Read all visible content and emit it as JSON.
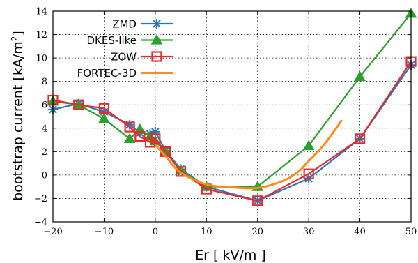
{
  "chart_data": {
    "type": "line",
    "xlabel": "Er [ kV/m ]",
    "ylabel": "bootstrap current [kA/m²]",
    "ylabel_main": "bootstrap current [kA/m",
    "ylabel_sup": "2",
    "ylabel_end": "]",
    "xlim": [
      -20,
      50
    ],
    "ylim": [
      -4,
      14
    ],
    "xticks": [
      -20,
      -10,
      0,
      10,
      20,
      30,
      40,
      50
    ],
    "xtick_labels": [
      "−20",
      "−10",
      "0",
      "10",
      "20",
      "30",
      "40",
      "50"
    ],
    "yticks": [
      -4,
      -2,
      0,
      2,
      4,
      6,
      8,
      10,
      12,
      14
    ],
    "ytick_labels": [
      "−4",
      "−2",
      "0",
      "2",
      "4",
      "6",
      "8",
      "10",
      "12",
      "14"
    ],
    "grid": true,
    "legend_position": "top-left",
    "series": [
      {
        "name": "ZMD",
        "color": "#2a77b8",
        "marker": "asterisk",
        "points": [
          [
            -20,
            5.6
          ],
          [
            -15,
            6.1
          ],
          [
            -10,
            5.4
          ],
          [
            -5,
            4.3
          ],
          [
            -3,
            3.6
          ],
          [
            -1,
            3.5
          ],
          [
            0,
            3.7
          ],
          [
            2,
            2.1
          ],
          [
            5,
            0.5
          ],
          [
            10,
            -1.0
          ],
          [
            20,
            -2.2
          ],
          [
            30,
            -0.3
          ],
          [
            40,
            3.1
          ],
          [
            50,
            9.4
          ]
        ]
      },
      {
        "name": "DKES-like",
        "color": "#2ca02c",
        "marker": "triangle",
        "points": [
          [
            -20,
            6.3
          ],
          [
            -15,
            6.0
          ],
          [
            -10,
            4.8
          ],
          [
            -5,
            3.1
          ],
          [
            -3,
            3.9
          ],
          [
            -1,
            3.3
          ],
          [
            0,
            2.9
          ],
          [
            2,
            2.0
          ],
          [
            5,
            0.4
          ],
          [
            10,
            -1.0
          ],
          [
            20,
            -1.0
          ],
          [
            30,
            2.5
          ],
          [
            40,
            8.4
          ],
          [
            50,
            13.8
          ]
        ]
      },
      {
        "name": "ZOW",
        "color": "#e8282c",
        "marker": "square",
        "points": [
          [
            -20,
            6.4
          ],
          [
            -15,
            6.0
          ],
          [
            -10,
            5.7
          ],
          [
            -5,
            4.1
          ],
          [
            -3,
            3.3
          ],
          [
            -1,
            2.8
          ],
          [
            0,
            3.1
          ],
          [
            2,
            2.0
          ],
          [
            5,
            0.3
          ],
          [
            10,
            -1.2
          ],
          [
            20,
            -2.2
          ],
          [
            30,
            0.1
          ],
          [
            40,
            3.1
          ],
          [
            50,
            9.7
          ]
        ]
      },
      {
        "name": "FORTEC-3D",
        "color": "#ff8c1a",
        "marker": "none",
        "points": [
          [
            0,
            2.6
          ],
          [
            2,
            1.6
          ],
          [
            5,
            0.2
          ],
          [
            10,
            -0.8
          ],
          [
            15,
            -1.05
          ],
          [
            20,
            -1.1
          ],
          [
            25,
            -0.5
          ],
          [
            28,
            0.3
          ],
          [
            30,
            1.2
          ],
          [
            33,
            2.6
          ],
          [
            36.5,
            4.7
          ]
        ]
      }
    ]
  }
}
